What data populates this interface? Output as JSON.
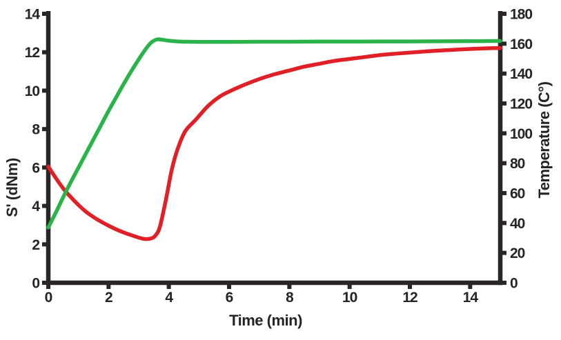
{
  "chart_data": {
    "type": "line",
    "title": "",
    "xlabel": "Time (min)",
    "ylabel_left": "S' (dNm)",
    "ylabel_right": "Temperature (C°)",
    "legend": "none",
    "grid": false,
    "colors": {
      "axis": "#2a2526",
      "tick_text": "#272325",
      "background": "#ffffff",
      "torque_red": "#e01f26",
      "temperature_green": "#2ab34b"
    },
    "x_axis": {
      "min": 0,
      "max": 15,
      "ticks": [
        0,
        2,
        4,
        6,
        8,
        10,
        12,
        14
      ]
    },
    "y_axis_left": {
      "min": 0,
      "max": 14,
      "ticks": [
        14,
        12,
        10,
        8,
        6,
        4,
        2,
        0
      ],
      "color": "#e01f26"
    },
    "y_axis_right": {
      "min": 0,
      "max": 180,
      "ticks": [
        180,
        160,
        140,
        120,
        100,
        80,
        60,
        40,
        20,
        0
      ],
      "color": "#2ab34b"
    },
    "series": [
      {
        "id": "s-prime",
        "name": "S' (dNm)",
        "axis": "left",
        "color": "#e01f26",
        "points": [
          [
            0,
            6.05
          ],
          [
            0.25,
            5.45
          ],
          [
            0.5,
            4.9
          ],
          [
            0.75,
            4.45
          ],
          [
            1,
            4.05
          ],
          [
            1.25,
            3.7
          ],
          [
            1.5,
            3.42
          ],
          [
            1.75,
            3.18
          ],
          [
            2,
            2.97
          ],
          [
            2.25,
            2.78
          ],
          [
            2.5,
            2.62
          ],
          [
            2.75,
            2.48
          ],
          [
            3,
            2.35
          ],
          [
            3.2,
            2.28
          ],
          [
            3.4,
            2.3
          ],
          [
            3.55,
            2.45
          ],
          [
            3.7,
            2.9
          ],
          [
            3.9,
            4.3
          ],
          [
            4.1,
            5.9
          ],
          [
            4.3,
            7.0
          ],
          [
            4.55,
            7.9
          ],
          [
            4.9,
            8.5
          ],
          [
            5.3,
            9.2
          ],
          [
            5.7,
            9.7
          ],
          [
            6,
            9.95
          ],
          [
            6.5,
            10.3
          ],
          [
            7,
            10.6
          ],
          [
            7.5,
            10.85
          ],
          [
            8,
            11.05
          ],
          [
            8.5,
            11.25
          ],
          [
            9,
            11.4
          ],
          [
            9.5,
            11.55
          ],
          [
            10,
            11.65
          ],
          [
            10.5,
            11.75
          ],
          [
            11,
            11.85
          ],
          [
            11.5,
            11.92
          ],
          [
            12,
            11.98
          ],
          [
            12.5,
            12.04
          ],
          [
            13,
            12.09
          ],
          [
            13.5,
            12.13
          ],
          [
            14,
            12.17
          ],
          [
            14.5,
            12.2
          ],
          [
            15,
            12.22
          ]
        ]
      },
      {
        "id": "temperature",
        "name": "Temperature (C°)",
        "axis": "right",
        "color": "#2ab34b",
        "points": [
          [
            0,
            37
          ],
          [
            0.25,
            47
          ],
          [
            0.5,
            57.5
          ],
          [
            0.75,
            67.5
          ],
          [
            1,
            77
          ],
          [
            1.25,
            86.5
          ],
          [
            1.5,
            96
          ],
          [
            1.75,
            105.5
          ],
          [
            2,
            115
          ],
          [
            2.25,
            124
          ],
          [
            2.5,
            133
          ],
          [
            2.75,
            141.5
          ],
          [
            3,
            149.5
          ],
          [
            3.2,
            155.5
          ],
          [
            3.4,
            160.5
          ],
          [
            3.6,
            162.8
          ],
          [
            3.8,
            162.6
          ],
          [
            4,
            162
          ],
          [
            4.3,
            161.5
          ],
          [
            4.6,
            161.3
          ],
          [
            5,
            161.2
          ],
          [
            5.5,
            161.2
          ],
          [
            6,
            161.2
          ],
          [
            7,
            161.3
          ],
          [
            8,
            161.3
          ],
          [
            9,
            161.4
          ],
          [
            10,
            161.4
          ],
          [
            11,
            161.5
          ],
          [
            12,
            161.5
          ],
          [
            13,
            161.6
          ],
          [
            14,
            161.7
          ],
          [
            15,
            161.8
          ]
        ]
      }
    ]
  }
}
